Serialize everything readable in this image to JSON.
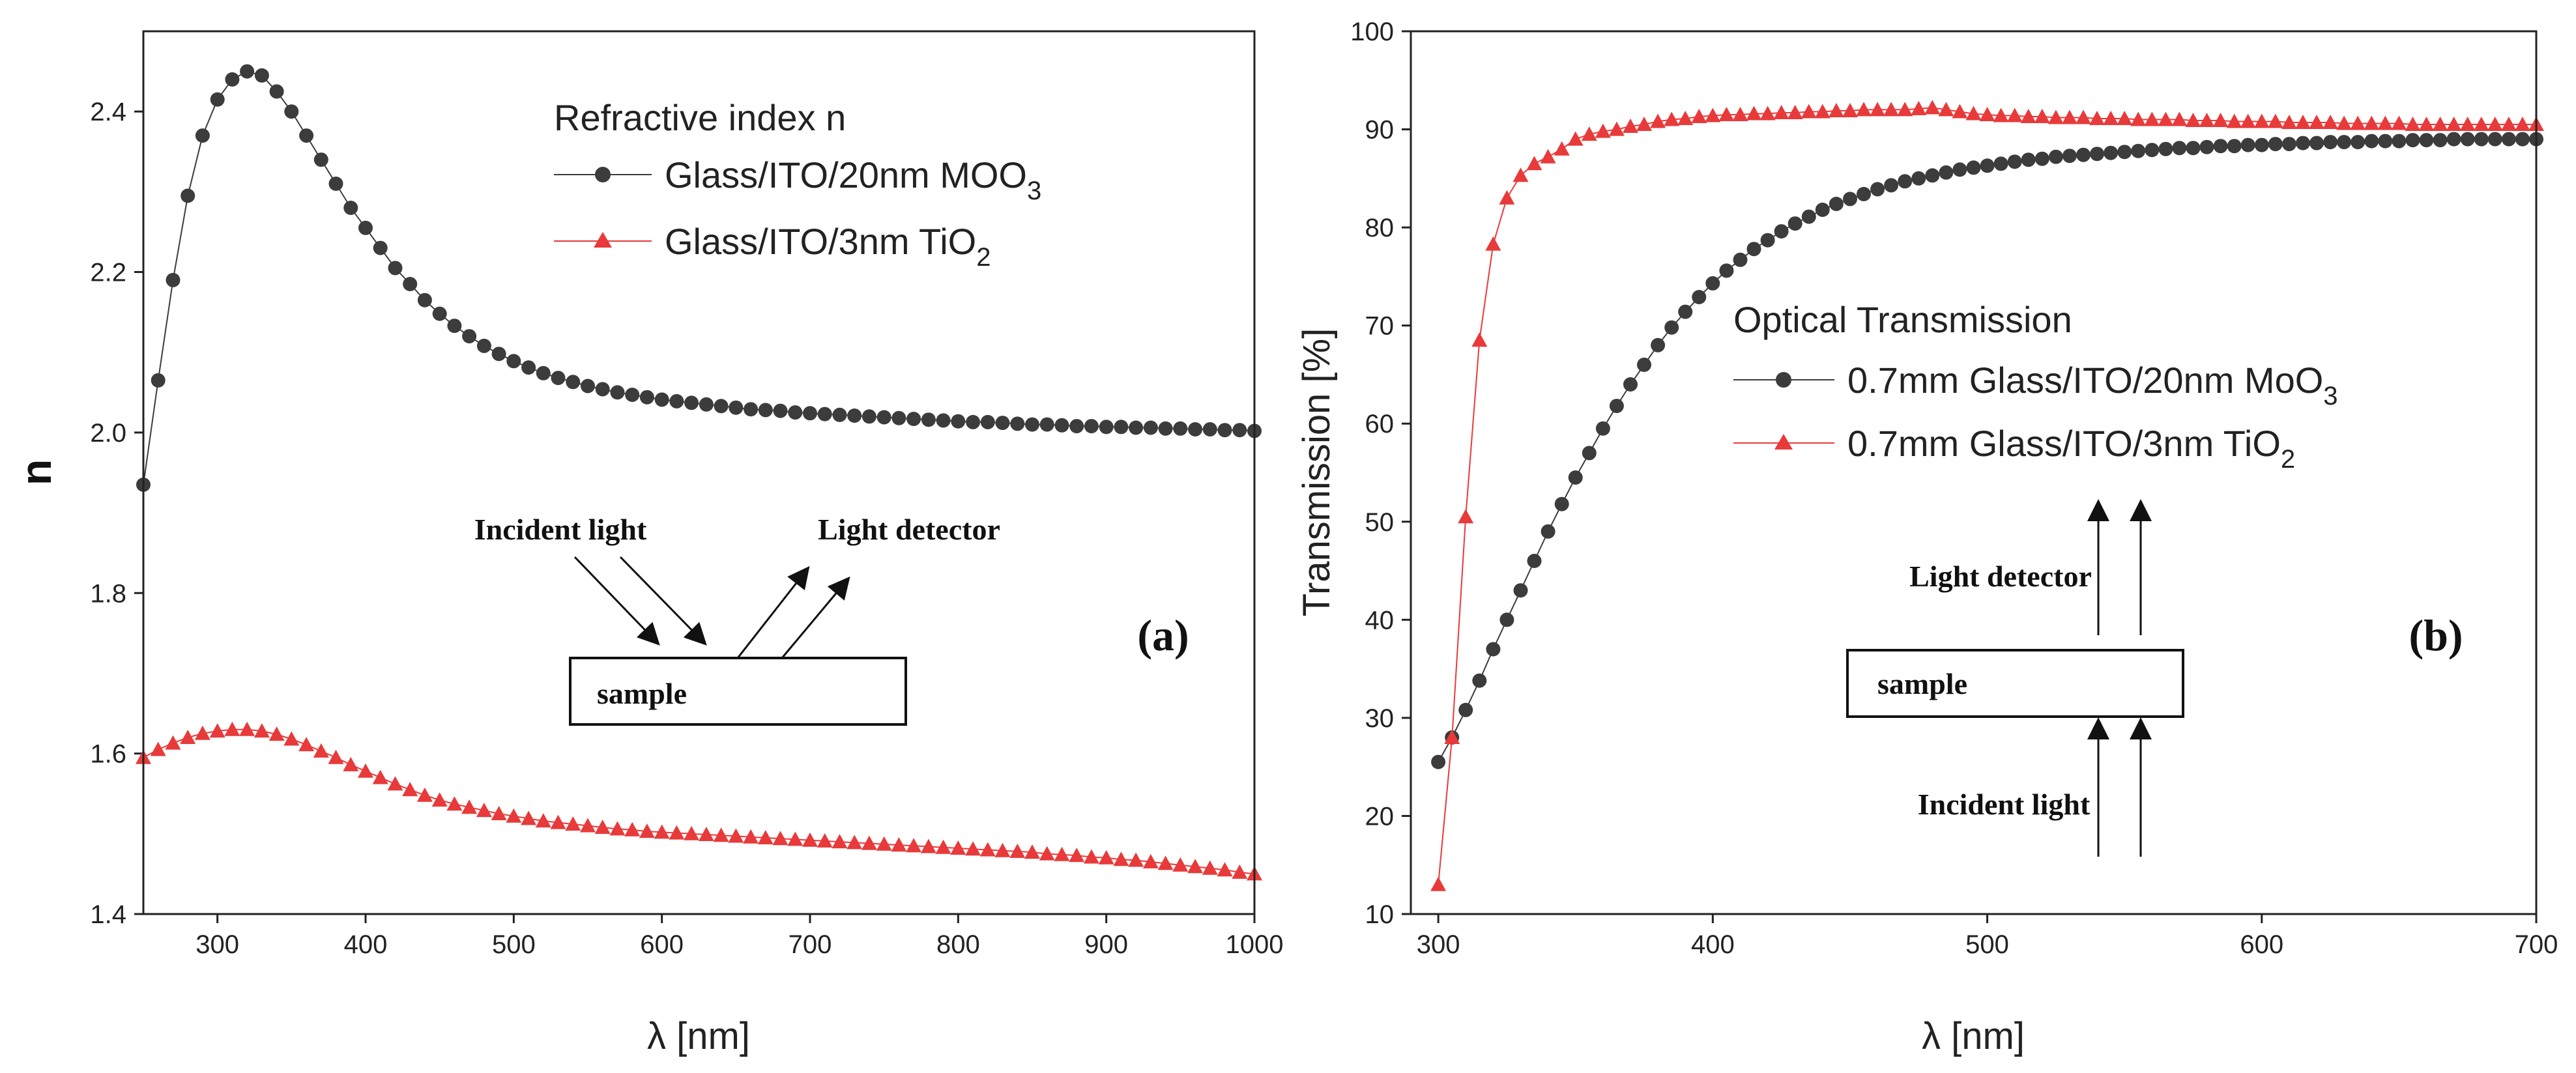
{
  "colors": {
    "black_series": "#3c3c3c",
    "red_series": "#e83a3a",
    "axis": "#222222"
  },
  "chart_data": [
    {
      "type": "scatter",
      "panel_label": "(a)",
      "xlabel": "λ [nm]",
      "ylabel": "n",
      "xlim": [
        250,
        1000
      ],
      "ylim": [
        1.4,
        2.5
      ],
      "xticks": [
        "300",
        "400",
        "500",
        "600",
        "700",
        "800",
        "900",
        "1000"
      ],
      "yticks": [
        "1.4",
        "1.6",
        "1.8",
        "2.0",
        "2.2",
        "2.4"
      ],
      "legend_title": "Refractive index n",
      "inset": {
        "incident": "Incident light",
        "detector": "Light detector",
        "sample": "sample"
      },
      "series": [
        {
          "name": "Glass/ITO/20nm MOO",
          "subscript": "3",
          "marker": "circle",
          "color": "#3c3c3c",
          "x": [
            250,
            260,
            270,
            280,
            290,
            300,
            310,
            320,
            330,
            340,
            350,
            360,
            370,
            380,
            390,
            400,
            410,
            420,
            430,
            440,
            450,
            460,
            470,
            480,
            490,
            500,
            510,
            520,
            530,
            540,
            550,
            560,
            570,
            580,
            590,
            600,
            610,
            620,
            630,
            640,
            650,
            660,
            670,
            680,
            690,
            700,
            710,
            720,
            730,
            740,
            750,
            760,
            770,
            780,
            790,
            800,
            810,
            820,
            830,
            840,
            850,
            860,
            870,
            880,
            890,
            900,
            910,
            920,
            930,
            940,
            950,
            960,
            970,
            980,
            990,
            1000
          ],
          "y": [
            1.935,
            2.065,
            2.19,
            2.295,
            2.37,
            2.415,
            2.44,
            2.45,
            2.445,
            2.425,
            2.4,
            2.37,
            2.34,
            2.31,
            2.28,
            2.255,
            2.23,
            2.205,
            2.185,
            2.165,
            2.148,
            2.133,
            2.12,
            2.108,
            2.098,
            2.089,
            2.081,
            2.074,
            2.068,
            2.063,
            2.058,
            2.054,
            2.05,
            2.047,
            2.044,
            2.041,
            2.039,
            2.037,
            2.035,
            2.033,
            2.031,
            2.029,
            2.028,
            2.027,
            2.025,
            2.024,
            2.023,
            2.022,
            2.021,
            2.02,
            2.019,
            2.018,
            2.017,
            2.016,
            2.015,
            2.014,
            2.013,
            2.013,
            2.012,
            2.011,
            2.01,
            2.01,
            2.009,
            2.008,
            2.008,
            2.007,
            2.007,
            2.006,
            2.006,
            2.005,
            2.005,
            2.004,
            2.004,
            2.003,
            2.003,
            2.002
          ]
        },
        {
          "name": "Glass/ITO/3nm TiO",
          "subscript": "2",
          "marker": "triangle",
          "color": "#e83a3a",
          "x": [
            250,
            260,
            270,
            280,
            290,
            300,
            310,
            320,
            330,
            340,
            350,
            360,
            370,
            380,
            390,
            400,
            410,
            420,
            430,
            440,
            450,
            460,
            470,
            480,
            490,
            500,
            510,
            520,
            530,
            540,
            550,
            560,
            570,
            580,
            590,
            600,
            610,
            620,
            630,
            640,
            650,
            660,
            670,
            680,
            690,
            700,
            710,
            720,
            730,
            740,
            750,
            760,
            770,
            780,
            790,
            800,
            810,
            820,
            830,
            840,
            850,
            860,
            870,
            880,
            890,
            900,
            910,
            920,
            930,
            940,
            950,
            960,
            970,
            980,
            990,
            1000
          ],
          "y": [
            1.595,
            1.605,
            1.613,
            1.62,
            1.625,
            1.628,
            1.63,
            1.63,
            1.628,
            1.624,
            1.618,
            1.611,
            1.603,
            1.595,
            1.586,
            1.578,
            1.57,
            1.562,
            1.555,
            1.548,
            1.542,
            1.537,
            1.533,
            1.529,
            1.525,
            1.522,
            1.519,
            1.516,
            1.514,
            1.512,
            1.51,
            1.508,
            1.506,
            1.505,
            1.503,
            1.502,
            1.501,
            1.5,
            1.499,
            1.498,
            1.497,
            1.496,
            1.495,
            1.494,
            1.493,
            1.492,
            1.491,
            1.49,
            1.489,
            1.488,
            1.487,
            1.486,
            1.485,
            1.484,
            1.483,
            1.482,
            1.481,
            1.48,
            1.479,
            1.478,
            1.477,
            1.475,
            1.474,
            1.473,
            1.471,
            1.47,
            1.468,
            1.467,
            1.465,
            1.463,
            1.461,
            1.459,
            1.457,
            1.455,
            1.452,
            1.45
          ]
        }
      ]
    },
    {
      "type": "scatter",
      "panel_label": "(b)",
      "xlabel": "λ [nm]",
      "ylabel": "Transmission [%]",
      "xlim": [
        290,
        700
      ],
      "ylim": [
        10,
        100
      ],
      "xticks": [
        "300",
        "400",
        "500",
        "600",
        "700"
      ],
      "yticks": [
        "10",
        "20",
        "30",
        "40",
        "50",
        "60",
        "70",
        "80",
        "90",
        "100"
      ],
      "legend_title": "Optical Transmission",
      "inset": {
        "incident": "Incident light",
        "detector": "Light detector",
        "sample": "sample"
      },
      "series": [
        {
          "name": "0.7mm Glass/ITO/20nm MoO",
          "subscript": "3",
          "marker": "circle",
          "color": "#3c3c3c",
          "x": [
            300,
            305,
            310,
            315,
            320,
            325,
            330,
            335,
            340,
            345,
            350,
            355,
            360,
            365,
            370,
            375,
            380,
            385,
            390,
            395,
            400,
            405,
            410,
            415,
            420,
            425,
            430,
            435,
            440,
            445,
            450,
            455,
            460,
            465,
            470,
            475,
            480,
            485,
            490,
            495,
            500,
            505,
            510,
            515,
            520,
            525,
            530,
            535,
            540,
            545,
            550,
            555,
            560,
            565,
            570,
            575,
            580,
            585,
            590,
            595,
            600,
            605,
            610,
            615,
            620,
            625,
            630,
            635,
            640,
            645,
            650,
            655,
            660,
            665,
            670,
            675,
            680,
            685,
            690,
            695,
            700
          ],
          "y": [
            25.5,
            28,
            30.8,
            33.8,
            37,
            40,
            43,
            46,
            49,
            51.8,
            54.5,
            57,
            59.5,
            61.8,
            64,
            66,
            68,
            69.8,
            71.4,
            72.9,
            74.3,
            75.6,
            76.7,
            77.8,
            78.7,
            79.6,
            80.4,
            81.1,
            81.8,
            82.4,
            82.9,
            83.4,
            83.9,
            84.3,
            84.7,
            85,
            85.3,
            85.6,
            85.9,
            86.1,
            86.3,
            86.5,
            86.7,
            86.9,
            87,
            87.2,
            87.3,
            87.4,
            87.5,
            87.6,
            87.7,
            87.8,
            87.9,
            88,
            88.1,
            88.1,
            88.2,
            88.3,
            88.3,
            88.4,
            88.4,
            88.5,
            88.5,
            88.6,
            88.6,
            88.7,
            88.7,
            88.7,
            88.8,
            88.8,
            88.8,
            88.9,
            88.9,
            88.9,
            89,
            89,
            89,
            89,
            89,
            89,
            89
          ]
        },
        {
          "name": "0.7mm Glass/ITO/3nm TiO",
          "subscript": "2",
          "marker": "triangle",
          "color": "#e83a3a",
          "x": [
            300,
            305,
            310,
            315,
            320,
            325,
            330,
            335,
            340,
            345,
            350,
            355,
            360,
            365,
            370,
            375,
            380,
            385,
            390,
            395,
            400,
            405,
            410,
            415,
            420,
            425,
            430,
            435,
            440,
            445,
            450,
            455,
            460,
            465,
            470,
            475,
            480,
            485,
            490,
            495,
            500,
            505,
            510,
            515,
            520,
            525,
            530,
            535,
            540,
            545,
            550,
            555,
            560,
            565,
            570,
            575,
            580,
            585,
            590,
            595,
            600,
            605,
            610,
            615,
            620,
            625,
            630,
            635,
            640,
            645,
            650,
            655,
            660,
            665,
            670,
            675,
            680,
            685,
            690,
            695,
            700
          ],
          "y": [
            13,
            28,
            50.5,
            68.5,
            78.3,
            83,
            85.3,
            86.5,
            87.2,
            88,
            89,
            89.5,
            89.8,
            90,
            90.3,
            90.5,
            90.8,
            91,
            91.1,
            91.3,
            91.4,
            91.5,
            91.5,
            91.6,
            91.6,
            91.7,
            91.7,
            91.8,
            91.8,
            91.9,
            91.9,
            92,
            92,
            92,
            92,
            92.1,
            92.2,
            92,
            91.8,
            91.6,
            91.5,
            91.4,
            91.4,
            91.3,
            91.3,
            91.2,
            91.2,
            91.2,
            91.1,
            91.1,
            91.1,
            91,
            91,
            91,
            91,
            90.9,
            90.9,
            90.9,
            90.8,
            90.8,
            90.8,
            90.8,
            90.7,
            90.7,
            90.7,
            90.7,
            90.6,
            90.6,
            90.6,
            90.6,
            90.6,
            90.5,
            90.5,
            90.5,
            90.5,
            90.5,
            90.5,
            90.5,
            90.5,
            90.5,
            90.5
          ]
        }
      ]
    }
  ]
}
